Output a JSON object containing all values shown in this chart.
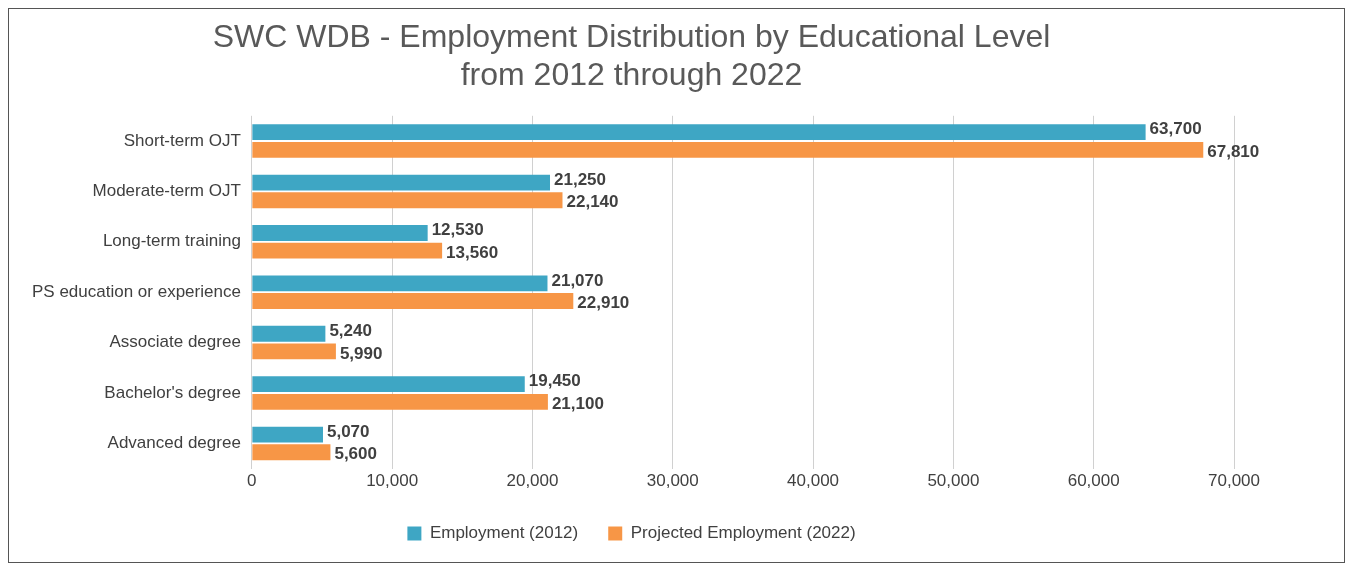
{
  "chart_data": {
    "type": "bar",
    "orientation": "horizontal",
    "title": "SWC WDB - Employment Distribution by Educational Level from 2012 through 2022",
    "categories": [
      "Short-term OJT",
      "Moderate-term OJT",
      "Long-term training",
      "PS education or experience",
      "Associate degree",
      "Bachelor's degree",
      "Advanced degree"
    ],
    "series": [
      {
        "name": "Employment (2012)",
        "color": "#3ea6c4",
        "values": [
          63700,
          21250,
          12530,
          21070,
          5240,
          19450,
          5070
        ],
        "value_labels": [
          "63,700",
          "21,250",
          "12,530",
          "21,070",
          "5,240",
          "19,450",
          "5,070"
        ]
      },
      {
        "name": "Projected Employment (2022)",
        "color": "#f79646",
        "values": [
          67810,
          22140,
          13560,
          22910,
          5990,
          21100,
          5600
        ],
        "value_labels": [
          "67,810",
          "22,140",
          "13,560",
          "22,910",
          "5,990",
          "21,100",
          "5,600"
        ]
      }
    ],
    "xlim": [
      0,
      70000
    ],
    "xticks": [
      0,
      {
        "value": 10000,
        "label": "10,000"
      },
      {
        "value": 20000,
        "label": "20,000"
      },
      {
        "value": 30000,
        "label": "30,000"
      },
      {
        "value": 40000,
        "label": "40,000"
      },
      {
        "value": 50000,
        "label": "50,000"
      },
      {
        "value": 60000,
        "label": "60,000"
      },
      {
        "value": 70000,
        "label": "70,000"
      }
    ],
    "grid": "x",
    "legend": "bottom"
  }
}
